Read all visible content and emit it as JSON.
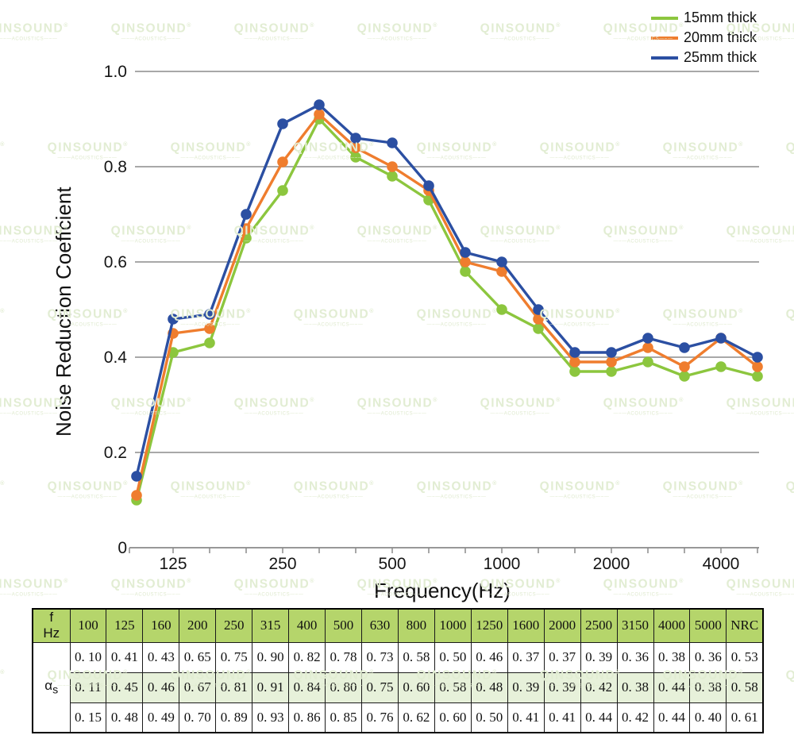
{
  "watermark": {
    "brand": "QINSOUND",
    "registered": "®",
    "tagline": "—~—ACOUSTICS—~—"
  },
  "chart_data": {
    "type": "line",
    "title": "",
    "xlabel": "Frequency(Hz)",
    "ylabel": "Noise Reduction Coeffcient",
    "x_scale": "log-one-third-octave",
    "categories": [
      100,
      125,
      160,
      200,
      250,
      315,
      400,
      500,
      630,
      800,
      1000,
      1250,
      1600,
      2000,
      2500,
      3150,
      4000,
      5000
    ],
    "x_major_ticks": [
      {
        "label": "125",
        "i": 1
      },
      {
        "label": "250",
        "i": 4
      },
      {
        "label": "500",
        "i": 7
      },
      {
        "label": "1000",
        "i": 10
      },
      {
        "label": "2000",
        "i": 13
      },
      {
        "label": "4000",
        "i": 16
      }
    ],
    "y_tick_labels": [
      "0",
      "0.2",
      "0.4",
      "0.6",
      "0.8",
      "1.0"
    ],
    "ylim": [
      0,
      1.0
    ],
    "grid": "horizontal",
    "legend_position": "top-right",
    "series": [
      {
        "name": "15mm thick",
        "color": "#8cc63e",
        "values": [
          0.1,
          0.41,
          0.43,
          0.65,
          0.75,
          0.9,
          0.82,
          0.78,
          0.73,
          0.58,
          0.5,
          0.46,
          0.37,
          0.37,
          0.39,
          0.36,
          0.38,
          0.36
        ]
      },
      {
        "name": "20mm thick",
        "color": "#ef7d2e",
        "values": [
          0.11,
          0.45,
          0.46,
          0.67,
          0.81,
          0.91,
          0.84,
          0.8,
          0.75,
          0.6,
          0.58,
          0.48,
          0.39,
          0.39,
          0.42,
          0.38,
          0.44,
          0.38
        ]
      },
      {
        "name": "25mm thick",
        "color": "#2b4fa2",
        "values": [
          0.15,
          0.48,
          0.49,
          0.7,
          0.89,
          0.93,
          0.86,
          0.85,
          0.76,
          0.62,
          0.6,
          0.5,
          0.41,
          0.41,
          0.44,
          0.42,
          0.44,
          0.4
        ]
      }
    ]
  },
  "table": {
    "corner": {
      "line1": "f",
      "line2": "Hz"
    },
    "row_label": {
      "base": "α",
      "sub": "s"
    },
    "columns": [
      "100",
      "125",
      "160",
      "200",
      "250",
      "315",
      "400",
      "500",
      "630",
      "800",
      "1000",
      "1250",
      "1600",
      "2000",
      "2500",
      "3150",
      "4000",
      "5000",
      "NRC"
    ],
    "rows": [
      [
        "0. 10",
        "0. 41",
        "0. 43",
        "0. 65",
        "0. 75",
        "0. 90",
        "0. 82",
        "0. 78",
        "0. 73",
        "0. 58",
        "0. 50",
        "0. 46",
        "0. 37",
        "0. 37",
        "0. 39",
        "0. 36",
        "0. 38",
        "0. 36",
        "0. 53"
      ],
      [
        "0. 11",
        "0. 45",
        "0. 46",
        "0. 67",
        "0. 81",
        "0. 91",
        "0. 84",
        "0. 80",
        "0. 75",
        "0. 60",
        "0. 58",
        "0. 48",
        "0. 39",
        "0. 39",
        "0. 42",
        "0. 38",
        "0. 44",
        "0. 38",
        "0. 58"
      ],
      [
        "0. 15",
        "0. 48",
        "0. 49",
        "0. 70",
        "0. 89",
        "0. 93",
        "0. 86",
        "0. 85",
        "0. 76",
        "0. 62",
        "0. 60",
        "0. 50",
        "0. 41",
        "0. 41",
        "0. 44",
        "0. 42",
        "0. 44",
        "0. 40",
        "0. 61"
      ]
    ],
    "colors": {
      "header_bg": "#b5d56b",
      "alt_row_bg": "#e7f1da"
    }
  }
}
